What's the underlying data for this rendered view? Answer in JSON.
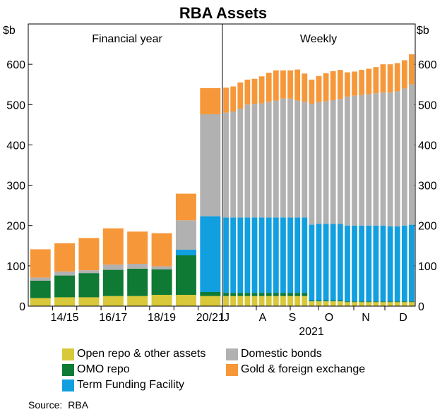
{
  "chart_data": {
    "type": "bar",
    "stacked": true,
    "title": "RBA Assets",
    "unit_left": "$b",
    "unit_right": "$b",
    "ylim": [
      0,
      700
    ],
    "yticks": [
      0,
      100,
      200,
      300,
      400,
      500,
      600
    ],
    "grid": false,
    "panels": [
      {
        "label": "Financial year",
        "x_tick_labels": [
          "14/15",
          "16/17",
          "18/19",
          "20/21"
        ],
        "categories": [
          "13/14",
          "14/15",
          "15/16",
          "16/17",
          "17/18",
          "18/19",
          "19/20",
          "20/21"
        ],
        "series": [
          {
            "name": "Open repo & other assets",
            "values": [
              20,
              22,
              22,
              25,
              25,
              28,
              28,
              25
            ]
          },
          {
            "name": "OMO repo",
            "values": [
              43,
              54,
              60,
              65,
              68,
              63,
              98,
              10
            ]
          },
          {
            "name": "Term Funding Facility",
            "values": [
              0,
              0,
              0,
              0,
              0,
              0,
              14,
              188
            ]
          },
          {
            "name": "Domestic bonds",
            "values": [
              8,
              10,
              7,
              13,
              12,
              8,
              73,
              253
            ]
          },
          {
            "name": "Gold & foreign exchange",
            "values": [
              70,
              70,
              80,
              90,
              80,
              82,
              66,
              65
            ]
          }
        ]
      },
      {
        "label": "Weekly",
        "x_tick_labels": [
          "J",
          "A",
          "S",
          "O",
          "N",
          "D"
        ],
        "year_label": "2021",
        "categories": [
          "w1",
          "w2",
          "w3",
          "w4",
          "w5",
          "w6",
          "w7",
          "w8",
          "w9",
          "w10",
          "w11",
          "w12",
          "w13",
          "w14",
          "w15",
          "w16",
          "w17",
          "w18",
          "w19",
          "w20",
          "w21",
          "w22",
          "w23",
          "w24",
          "w25",
          "w26",
          "w27"
        ],
        "series": [
          {
            "name": "Open repo & other assets",
            "values": [
              25,
              25,
              25,
              25,
              25,
              25,
              25,
              25,
              25,
              25,
              25,
              25,
              12,
              12,
              12,
              12,
              12,
              10,
              10,
              10,
              10,
              10,
              10,
              10,
              10,
              10,
              10
            ]
          },
          {
            "name": "OMO repo",
            "values": [
              8,
              8,
              8,
              8,
              8,
              8,
              8,
              8,
              8,
              8,
              8,
              8,
              2,
              2,
              2,
              2,
              2,
              2,
              2,
              2,
              2,
              2,
              2,
              2,
              2,
              2,
              2
            ]
          },
          {
            "name": "Term Funding Facility",
            "values": [
              187,
              187,
              187,
              187,
              187,
              187,
              187,
              187,
              187,
              187,
              187,
              187,
              188,
              190,
              190,
              190,
              190,
              188,
              188,
              188,
              188,
              188,
              188,
              186,
              186,
              188,
              190
            ]
          },
          {
            "name": "Domestic bonds",
            "values": [
              260,
              263,
              270,
              280,
              282,
              283,
              287,
              290,
              295,
              295,
              290,
              287,
              300,
              302,
              304,
              307,
              310,
              320,
              322,
              324,
              326,
              328,
              330,
              332,
              335,
              340,
              348
            ]
          },
          {
            "name": "Gold & foreign exchange",
            "values": [
              62,
              62,
              65,
              62,
              62,
              67,
              72,
              75,
              70,
              70,
              77,
              70,
              60,
              65,
              70,
              72,
              72,
              60,
              60,
              62,
              63,
              65,
              70,
              70,
              70,
              70,
              75
            ]
          }
        ]
      }
    ],
    "colors": {
      "Open repo & other assets": "#d8c83a",
      "OMO repo": "#0e7a34",
      "Term Funding Facility": "#119fe0",
      "Domestic bonds": "#b1b1b1",
      "Gold & foreign exchange": "#f6983a"
    },
    "legend": [
      "Open repo & other assets",
      "Domestic bonds",
      "OMO repo",
      "Gold & foreign exchange",
      "Term Funding Facility"
    ],
    "source_label": "Source:",
    "source_value": "RBA"
  }
}
